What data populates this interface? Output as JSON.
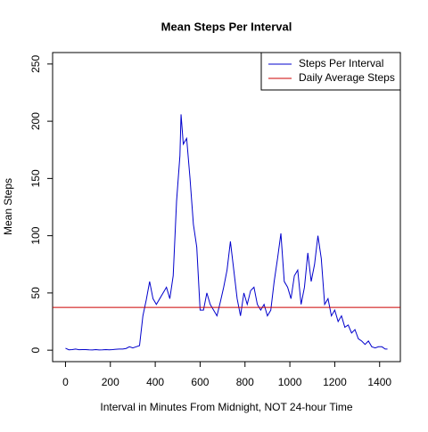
{
  "chart_data": {
    "type": "line",
    "title": "Mean Steps Per Interval",
    "xlabel": "Interval in Minutes From Midnight, NOT 24-hour Time",
    "ylabel": "Mean Steps",
    "x": [
      0,
      15,
      30,
      45,
      60,
      75,
      90,
      105,
      120,
      135,
      150,
      165,
      180,
      195,
      210,
      225,
      240,
      255,
      270,
      285,
      300,
      315,
      330,
      345,
      360,
      375,
      390,
      405,
      420,
      435,
      450,
      465,
      480,
      495,
      510,
      515,
      525,
      540,
      555,
      570,
      585,
      600,
      615,
      630,
      645,
      660,
      675,
      690,
      705,
      720,
      735,
      750,
      765,
      780,
      795,
      810,
      825,
      840,
      855,
      870,
      885,
      900,
      915,
      930,
      945,
      960,
      975,
      990,
      1005,
      1020,
      1035,
      1050,
      1065,
      1080,
      1095,
      1110,
      1125,
      1140,
      1155,
      1170,
      1185,
      1200,
      1215,
      1230,
      1245,
      1260,
      1275,
      1290,
      1305,
      1320,
      1335,
      1350,
      1365,
      1380,
      1395,
      1410,
      1425,
      1435
    ],
    "series": [
      {
        "name": "Steps Per Interval",
        "color": "#0000cc",
        "values": [
          1.7,
          0.3,
          0.5,
          1,
          0.4,
          0.5,
          0.5,
          0.3,
          0.2,
          0.5,
          0.2,
          0.3,
          0.5,
          0.3,
          0.5,
          0.8,
          1,
          1,
          1.5,
          3,
          2,
          3,
          4,
          30,
          44,
          60,
          45,
          40,
          45,
          50,
          55,
          45,
          65,
          130,
          170,
          206,
          180,
          185,
          150,
          110,
          90,
          35,
          35,
          50,
          40,
          35,
          30,
          42,
          55,
          70,
          95,
          70,
          45,
          30,
          50,
          40,
          52,
          55,
          40,
          35,
          40,
          30,
          35,
          60,
          80,
          102,
          60,
          55,
          45,
          65,
          70,
          40,
          55,
          85,
          60,
          75,
          100,
          80,
          40,
          45,
          30,
          35,
          25,
          30,
          20,
          22,
          15,
          18,
          10,
          8,
          5,
          8,
          3,
          2,
          3,
          3,
          1,
          1
        ]
      },
      {
        "name": "Daily Average Steps",
        "color": "#cc0000",
        "hline": 37.38
      }
    ],
    "xlim": [
      -57.4,
      1492.4
    ],
    "ylim": [
      -10,
      260
    ],
    "xticks": [
      0,
      200,
      400,
      600,
      800,
      1000,
      1200,
      1400
    ],
    "yticks": [
      0,
      50,
      100,
      150,
      200,
      250
    ],
    "legend": "topright"
  }
}
